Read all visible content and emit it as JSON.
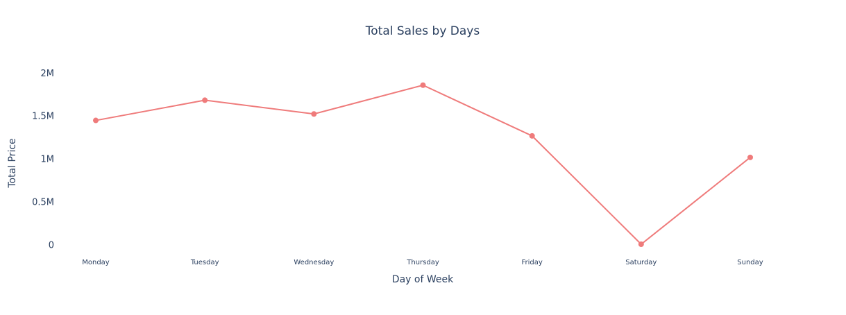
{
  "chart_data": {
    "type": "line",
    "title": "Total Sales by Days",
    "xlabel": "Day of Week",
    "ylabel": "Total Price",
    "categories": [
      "Monday",
      "Tuesday",
      "Wednesday",
      "Thursday",
      "Friday",
      "Saturday",
      "Sunday"
    ],
    "series": [
      {
        "values": [
          1445000,
          1680000,
          1520000,
          1855000,
          1265000,
          5000,
          1015000
        ],
        "color": "#ef7b7b"
      }
    ],
    "ylim": [
      -100000,
      2200000
    ],
    "yticks": [
      0,
      500000,
      1000000,
      1500000,
      2000000
    ],
    "ytick_labels": [
      "0",
      "0.5M",
      "1M",
      "1.5M",
      "2M"
    ],
    "grid": false,
    "legend": "none"
  }
}
